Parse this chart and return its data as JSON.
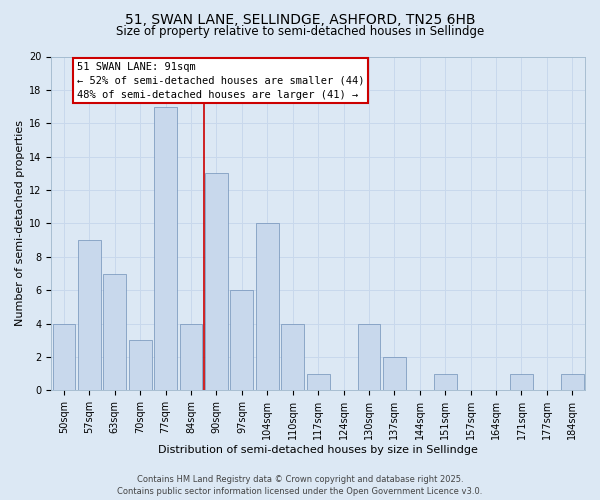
{
  "title": "51, SWAN LANE, SELLINDGE, ASHFORD, TN25 6HB",
  "subtitle": "Size of property relative to semi-detached houses in Sellindge",
  "xlabel": "Distribution of semi-detached houses by size in Sellindge",
  "ylabel": "Number of semi-detached properties",
  "categories": [
    "50sqm",
    "57sqm",
    "63sqm",
    "70sqm",
    "77sqm",
    "84sqm",
    "90sqm",
    "97sqm",
    "104sqm",
    "110sqm",
    "117sqm",
    "124sqm",
    "130sqm",
    "137sqm",
    "144sqm",
    "151sqm",
    "157sqm",
    "164sqm",
    "171sqm",
    "177sqm",
    "184sqm"
  ],
  "values": [
    4,
    9,
    7,
    3,
    17,
    4,
    13,
    6,
    10,
    4,
    1,
    0,
    4,
    2,
    0,
    1,
    0,
    0,
    1,
    0,
    1
  ],
  "bar_color": "#c8d8ec",
  "bar_edge_color": "#7090b8",
  "vline_x": 6,
  "vline_color": "#cc0000",
  "annotation_title": "51 SWAN LANE: 91sqm",
  "annotation_line1": "← 52% of semi-detached houses are smaller (44)",
  "annotation_line2": "48% of semi-detached houses are larger (41) →",
  "annotation_box_facecolor": "#ffffff",
  "annotation_box_edgecolor": "#cc0000",
  "ylim": [
    0,
    20
  ],
  "yticks": [
    0,
    2,
    4,
    6,
    8,
    10,
    12,
    14,
    16,
    18,
    20
  ],
  "grid_color": "#c8d8ec",
  "bg_color": "#dce8f4",
  "title_fontsize": 10,
  "subtitle_fontsize": 8.5,
  "axis_label_fontsize": 8,
  "tick_fontsize": 7,
  "annotation_fontsize": 7.5,
  "footer_fontsize": 6,
  "footer_line1": "Contains HM Land Registry data © Crown copyright and database right 2025.",
  "footer_line2": "Contains public sector information licensed under the Open Government Licence v3.0."
}
